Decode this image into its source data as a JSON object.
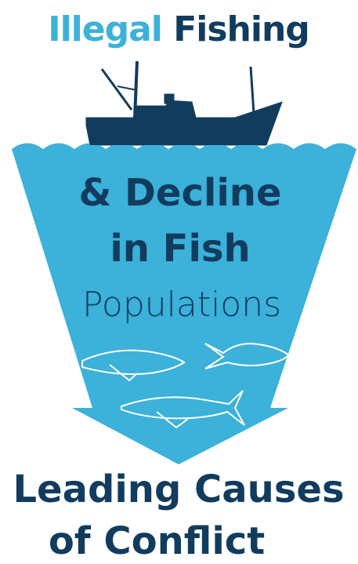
{
  "header": {
    "title_part1": "Illegal",
    "title_part2": "Fishing"
  },
  "funnel": {
    "line1": "& Decline",
    "line2": "in Fish",
    "line3": "Populations"
  },
  "footer": {
    "line1": "Leading Causes",
    "line2": "of Conflict"
  }
}
